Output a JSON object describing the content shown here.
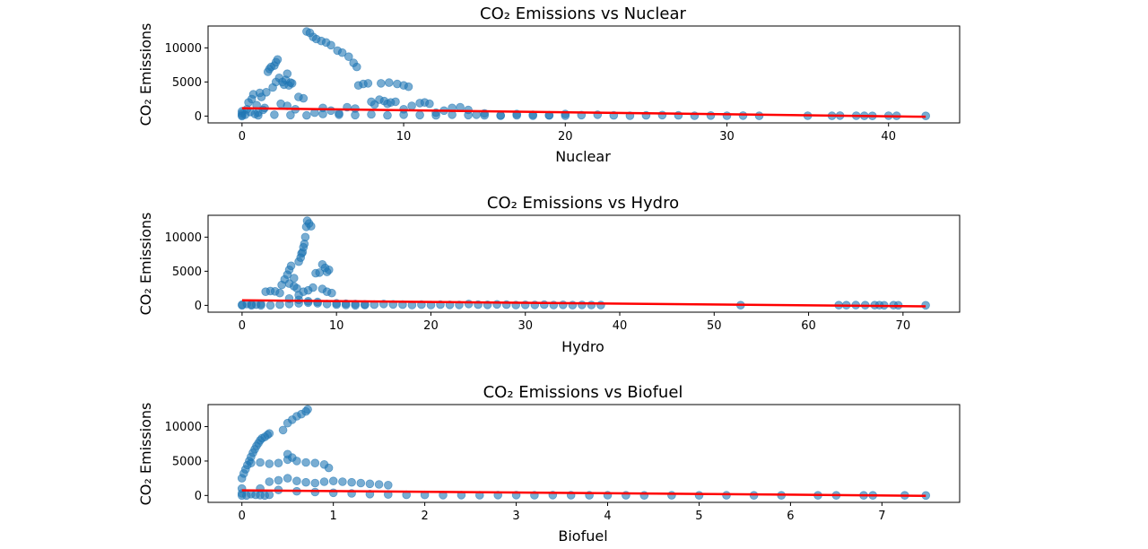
{
  "figure": {
    "background": "#ffffff"
  },
  "colors": {
    "point": "#1f77b4",
    "trend": "#ff0000",
    "axis": "#000000"
  },
  "chart_data": [
    {
      "type": "scatter",
      "title": "CO₂ Emissions vs Nuclear",
      "xlabel": "Nuclear",
      "ylabel": "CO₂ Emissions",
      "xlim": [
        -2.1,
        44.4
      ],
      "ylim": [
        -1000,
        13200
      ],
      "xticks": [
        0,
        10,
        20,
        30,
        40
      ],
      "yticks": [
        0,
        5000,
        10000
      ],
      "trend": {
        "x": [
          0,
          42.3
        ],
        "y": [
          1150,
          -100
        ]
      },
      "points": [
        [
          0,
          0
        ],
        [
          0,
          150
        ],
        [
          0,
          400
        ],
        [
          0,
          700
        ],
        [
          0.2,
          200
        ],
        [
          0.3,
          1000
        ],
        [
          0.4,
          2000
        ],
        [
          0.5,
          600
        ],
        [
          0.6,
          2500
        ],
        [
          0.7,
          3200
        ],
        [
          0.8,
          300
        ],
        [
          0.9,
          1600
        ],
        [
          1,
          500
        ],
        [
          1.1,
          3400
        ],
        [
          1.2,
          2800
        ],
        [
          1.3,
          900
        ],
        [
          1.4,
          1200
        ],
        [
          1.5,
          3500
        ],
        [
          1.6,
          6500
        ],
        [
          1.7,
          6900
        ],
        [
          1.8,
          7200
        ],
        [
          2,
          7400
        ],
        [
          2.1,
          7900
        ],
        [
          2.2,
          8300
        ],
        [
          1.9,
          4200
        ],
        [
          2.1,
          5000
        ],
        [
          2.3,
          5600
        ],
        [
          2.5,
          5000
        ],
        [
          2.6,
          4600
        ],
        [
          2.7,
          5300
        ],
        [
          2.8,
          6200
        ],
        [
          2.9,
          4500
        ],
        [
          3,
          4900
        ],
        [
          3.1,
          4800
        ],
        [
          2.4,
          1800
        ],
        [
          2.8,
          1500
        ],
        [
          3.3,
          1000
        ],
        [
          3.5,
          2800
        ],
        [
          3.8,
          2600
        ],
        [
          4,
          12400
        ],
        [
          4.2,
          12200
        ],
        [
          4.4,
          11600
        ],
        [
          4.6,
          11300
        ],
        [
          4.9,
          11000
        ],
        [
          5.2,
          10800
        ],
        [
          5.5,
          10400
        ],
        [
          5.9,
          9600
        ],
        [
          6.2,
          9300
        ],
        [
          6.6,
          8700
        ],
        [
          6.9,
          7800
        ],
        [
          7.1,
          7200
        ],
        [
          4.5,
          500
        ],
        [
          5,
          1200
        ],
        [
          5.5,
          800
        ],
        [
          6,
          400
        ],
        [
          6.5,
          1300
        ],
        [
          7,
          1100
        ],
        [
          7.2,
          4500
        ],
        [
          7.5,
          4700
        ],
        [
          7.8,
          4800
        ],
        [
          8,
          2100
        ],
        [
          8.2,
          1700
        ],
        [
          8.5,
          2400
        ],
        [
          8.8,
          2200
        ],
        [
          9,
          1800
        ],
        [
          9.2,
          2000
        ],
        [
          9.5,
          2100
        ],
        [
          8.6,
          4800
        ],
        [
          9.1,
          4900
        ],
        [
          9.6,
          4700
        ],
        [
          10,
          4500
        ],
        [
          10.3,
          4300
        ],
        [
          10,
          1000
        ],
        [
          10.5,
          1500
        ],
        [
          11,
          1900
        ],
        [
          11.3,
          2000
        ],
        [
          11.6,
          1800
        ],
        [
          12,
          500
        ],
        [
          12.5,
          800
        ],
        [
          13,
          1200
        ],
        [
          13.5,
          1300
        ],
        [
          14,
          900
        ],
        [
          14.5,
          200
        ],
        [
          15,
          400
        ],
        [
          16,
          100
        ],
        [
          17,
          300
        ],
        [
          18,
          200
        ],
        [
          19,
          100
        ],
        [
          20,
          300
        ],
        [
          21,
          150
        ],
        [
          22,
          200
        ],
        [
          23,
          100
        ],
        [
          24,
          50
        ],
        [
          25,
          100
        ],
        [
          26,
          150
        ],
        [
          27,
          100
        ],
        [
          28,
          50
        ],
        [
          29,
          80
        ],
        [
          30,
          50
        ],
        [
          31,
          60
        ],
        [
          32,
          40
        ],
        [
          35,
          50
        ],
        [
          36.5,
          40
        ],
        [
          37,
          60
        ],
        [
          38,
          50
        ],
        [
          38.5,
          40
        ],
        [
          39,
          30
        ],
        [
          40,
          50
        ],
        [
          40.5,
          40
        ],
        [
          42.3,
          20
        ],
        [
          1,
          100
        ],
        [
          2,
          200
        ],
        [
          3,
          150
        ],
        [
          4,
          100
        ],
        [
          5,
          300
        ],
        [
          6,
          200
        ],
        [
          7,
          150
        ],
        [
          8,
          250
        ],
        [
          9,
          100
        ],
        [
          10,
          200
        ],
        [
          11,
          150
        ],
        [
          12,
          100
        ],
        [
          13,
          200
        ],
        [
          14,
          150
        ],
        [
          15,
          100
        ],
        [
          16,
          50
        ],
        [
          17,
          100
        ],
        [
          18,
          50
        ],
        [
          19,
          100
        ],
        [
          20,
          50
        ]
      ]
    },
    {
      "type": "scatter",
      "title": "CO₂ Emissions vs Hydro",
      "xlabel": "Hydro",
      "ylabel": "CO₂ Emissions",
      "xlim": [
        -3.6,
        76
      ],
      "ylim": [
        -1000,
        13200
      ],
      "xticks": [
        0,
        10,
        20,
        30,
        40,
        50,
        60,
        70
      ],
      "yticks": [
        0,
        5000,
        10000
      ],
      "trend": {
        "x": [
          0,
          72.4
        ],
        "y": [
          750,
          -150
        ]
      },
      "points": [
        [
          0,
          0
        ],
        [
          0,
          100
        ],
        [
          0.5,
          200
        ],
        [
          1,
          150
        ],
        [
          1.5,
          100
        ],
        [
          2,
          200
        ],
        [
          2.5,
          2000
        ],
        [
          3,
          2100
        ],
        [
          3.5,
          2050
        ],
        [
          4,
          1800
        ],
        [
          4.2,
          3000
        ],
        [
          4.5,
          3800
        ],
        [
          4.8,
          4500
        ],
        [
          5,
          5200
        ],
        [
          5.2,
          5800
        ],
        [
          5.5,
          4000
        ],
        [
          5.8,
          2500
        ],
        [
          6,
          6400
        ],
        [
          6.2,
          7000
        ],
        [
          6.4,
          7800
        ],
        [
          6.6,
          9000
        ],
        [
          6.7,
          10000
        ],
        [
          6.8,
          11500
        ],
        [
          6.9,
          12400
        ],
        [
          7.1,
          12000
        ],
        [
          7.3,
          11600
        ],
        [
          6.5,
          8500
        ],
        [
          6.3,
          7600
        ],
        [
          5,
          3200
        ],
        [
          5.5,
          2800
        ],
        [
          6,
          1500
        ],
        [
          6.5,
          2000
        ],
        [
          7,
          2200
        ],
        [
          7.5,
          2600
        ],
        [
          7.8,
          4700
        ],
        [
          8.2,
          4800
        ],
        [
          8.5,
          6000
        ],
        [
          8.8,
          5500
        ],
        [
          9,
          4900
        ],
        [
          9.2,
          5200
        ],
        [
          8.5,
          2400
        ],
        [
          9,
          2000
        ],
        [
          9.5,
          1800
        ],
        [
          5,
          1000
        ],
        [
          6,
          800
        ],
        [
          7,
          600
        ],
        [
          8,
          500
        ],
        [
          10,
          300
        ],
        [
          11,
          250
        ],
        [
          12,
          200
        ],
        [
          13,
          150
        ],
        [
          14,
          100
        ],
        [
          15,
          200
        ],
        [
          16,
          150
        ],
        [
          17,
          100
        ],
        [
          18,
          50
        ],
        [
          19,
          100
        ],
        [
          20,
          50
        ],
        [
          21,
          100
        ],
        [
          22,
          80
        ],
        [
          23,
          60
        ],
        [
          24,
          200
        ],
        [
          25,
          100
        ],
        [
          26,
          80
        ],
        [
          27,
          150
        ],
        [
          28,
          100
        ],
        [
          29,
          50
        ],
        [
          30,
          80
        ],
        [
          31,
          60
        ],
        [
          32,
          100
        ],
        [
          33,
          50
        ],
        [
          34,
          80
        ],
        [
          35,
          40
        ],
        [
          36,
          60
        ],
        [
          37,
          50
        ],
        [
          38,
          40
        ],
        [
          52.8,
          20
        ],
        [
          63.2,
          30
        ],
        [
          64,
          20
        ],
        [
          65,
          40
        ],
        [
          66,
          30
        ],
        [
          67,
          20
        ],
        [
          67.5,
          25
        ],
        [
          68,
          15
        ],
        [
          69,
          20
        ],
        [
          69.5,
          10
        ],
        [
          72.4,
          10
        ],
        [
          1,
          0
        ],
        [
          2,
          0
        ],
        [
          3,
          0
        ],
        [
          4,
          100
        ],
        [
          5,
          200
        ],
        [
          6,
          300
        ],
        [
          7,
          400
        ],
        [
          8,
          300
        ],
        [
          9,
          200
        ],
        [
          10,
          100
        ],
        [
          11,
          50
        ],
        [
          12,
          0
        ],
        [
          13,
          50
        ]
      ]
    },
    {
      "type": "scatter",
      "title": "CO₂ Emissions vs Biofuel",
      "xlabel": "Biofuel",
      "ylabel": "CO₂ Emissions",
      "xlim": [
        -0.37,
        7.85
      ],
      "ylim": [
        -1000,
        13200
      ],
      "xticks": [
        0,
        1,
        2,
        3,
        4,
        5,
        6,
        7
      ],
      "yticks": [
        0,
        5000,
        10000
      ],
      "trend": {
        "x": [
          0,
          7.48
        ],
        "y": [
          750,
          -50
        ]
      },
      "points": [
        [
          0,
          0
        ],
        [
          0,
          300
        ],
        [
          0,
          1000
        ],
        [
          0,
          2500
        ],
        [
          0.02,
          3200
        ],
        [
          0.04,
          3800
        ],
        [
          0.06,
          4400
        ],
        [
          0.08,
          5000
        ],
        [
          0.1,
          5600
        ],
        [
          0.12,
          6200
        ],
        [
          0.14,
          6700
        ],
        [
          0.16,
          7200
        ],
        [
          0.18,
          7600
        ],
        [
          0.2,
          8000
        ],
        [
          0.22,
          8300
        ],
        [
          0.25,
          8500
        ],
        [
          0.28,
          8800
        ],
        [
          0.3,
          9000
        ],
        [
          0.45,
          9500
        ],
        [
          0.5,
          10500
        ],
        [
          0.55,
          11000
        ],
        [
          0.6,
          11500
        ],
        [
          0.65,
          11800
        ],
        [
          0.7,
          12200
        ],
        [
          0.72,
          12500
        ],
        [
          0.1,
          4700
        ],
        [
          0.2,
          4800
        ],
        [
          0.3,
          4600
        ],
        [
          0.4,
          4700
        ],
        [
          0.5,
          5200
        ],
        [
          0.5,
          6000
        ],
        [
          0.55,
          5500
        ],
        [
          0.6,
          5000
        ],
        [
          0.7,
          4800
        ],
        [
          0.8,
          4700
        ],
        [
          0.9,
          4500
        ],
        [
          0.95,
          4000
        ],
        [
          0.3,
          2000
        ],
        [
          0.4,
          2200
        ],
        [
          0.5,
          2500
        ],
        [
          0.6,
          2100
        ],
        [
          0.7,
          1900
        ],
        [
          0.8,
          1800
        ],
        [
          0.9,
          2000
        ],
        [
          1,
          2100
        ],
        [
          1.1,
          2000
        ],
        [
          1.2,
          1900
        ],
        [
          1.3,
          1800
        ],
        [
          1.4,
          1700
        ],
        [
          1.5,
          1600
        ],
        [
          1.6,
          1500
        ],
        [
          0.2,
          1000
        ],
        [
          0.4,
          800
        ],
        [
          0.6,
          600
        ],
        [
          0.8,
          500
        ],
        [
          1,
          400
        ],
        [
          1.2,
          300
        ],
        [
          1.4,
          200
        ],
        [
          1.6,
          150
        ],
        [
          1.8,
          100
        ],
        [
          2,
          80
        ],
        [
          2.2,
          60
        ],
        [
          2.4,
          50
        ],
        [
          2.6,
          40
        ],
        [
          2.8,
          60
        ],
        [
          3,
          50
        ],
        [
          3.2,
          40
        ],
        [
          3.4,
          50
        ],
        [
          3.6,
          40
        ],
        [
          3.8,
          30
        ],
        [
          4,
          40
        ],
        [
          4.2,
          30
        ],
        [
          4.4,
          20
        ],
        [
          4.7,
          30
        ],
        [
          5,
          20
        ],
        [
          5.3,
          25
        ],
        [
          5.6,
          15
        ],
        [
          5.9,
          20
        ],
        [
          6.3,
          10
        ],
        [
          6.5,
          15
        ],
        [
          6.8,
          10
        ],
        [
          6.9,
          20
        ],
        [
          7.25,
          10
        ],
        [
          7.48,
          5
        ],
        [
          0.05,
          0
        ],
        [
          0.1,
          200
        ],
        [
          0.15,
          100
        ],
        [
          0.2,
          50
        ],
        [
          0.25,
          0
        ],
        [
          0.3,
          100
        ]
      ]
    }
  ]
}
